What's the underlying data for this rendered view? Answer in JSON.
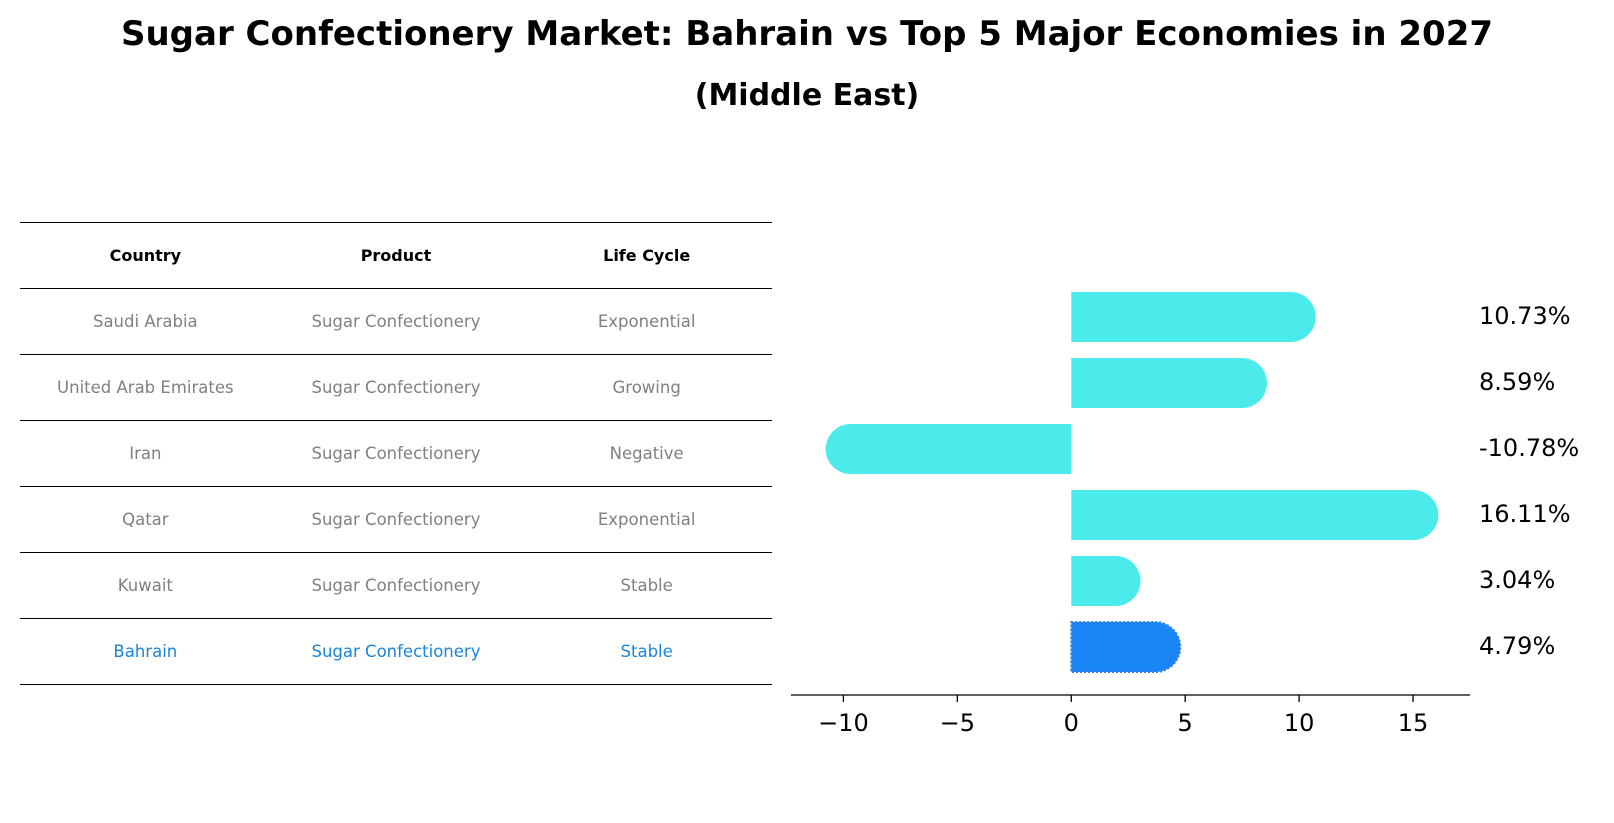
{
  "title": "Sugar Confectionery Market: Bahrain vs Top 5 Major Economies in 2027",
  "subtitle": "(Middle East)",
  "table": {
    "headers": [
      "Country",
      "Product",
      "Life Cycle"
    ],
    "rows": [
      {
        "country": "Saudi Arabia",
        "product": "Sugar Confectionery",
        "life_cycle": "Exponential"
      },
      {
        "country": "United Arab Emirates",
        "product": "Sugar Confectionery",
        "life_cycle": "Growing"
      },
      {
        "country": "Iran",
        "product": "Sugar Confectionery",
        "life_cycle": "Negative"
      },
      {
        "country": "Qatar",
        "product": "Sugar Confectionery",
        "life_cycle": "Exponential"
      },
      {
        "country": "Kuwait",
        "product": "Sugar Confectionery",
        "life_cycle": "Stable"
      },
      {
        "country": "Bahrain",
        "product": "Sugar Confectionery",
        "life_cycle": "Stable"
      }
    ]
  },
  "chart_data": {
    "type": "bar",
    "orientation": "horizontal",
    "categories": [
      "Saudi Arabia",
      "United Arab Emirates",
      "Iran",
      "Qatar",
      "Kuwait",
      "Bahrain"
    ],
    "values": [
      10.73,
      8.59,
      -10.78,
      16.11,
      3.04,
      4.79
    ],
    "value_labels": [
      "10.73%",
      "8.59%",
      "-10.78%",
      "16.11%",
      "3.04%",
      "4.79%"
    ],
    "xlim": [
      -12.3,
      17.5
    ],
    "xticks": [
      -10,
      -5,
      0,
      5,
      10,
      15
    ],
    "xtick_labels": [
      "−10",
      "−5",
      "0",
      "5",
      "10",
      "15"
    ],
    "highlight": "Bahrain",
    "colors": {
      "default": "#4bebeb",
      "highlight": "#1a85f5",
      "highlight_text": "#1a85d8",
      "muted_text": "#808080"
    }
  }
}
